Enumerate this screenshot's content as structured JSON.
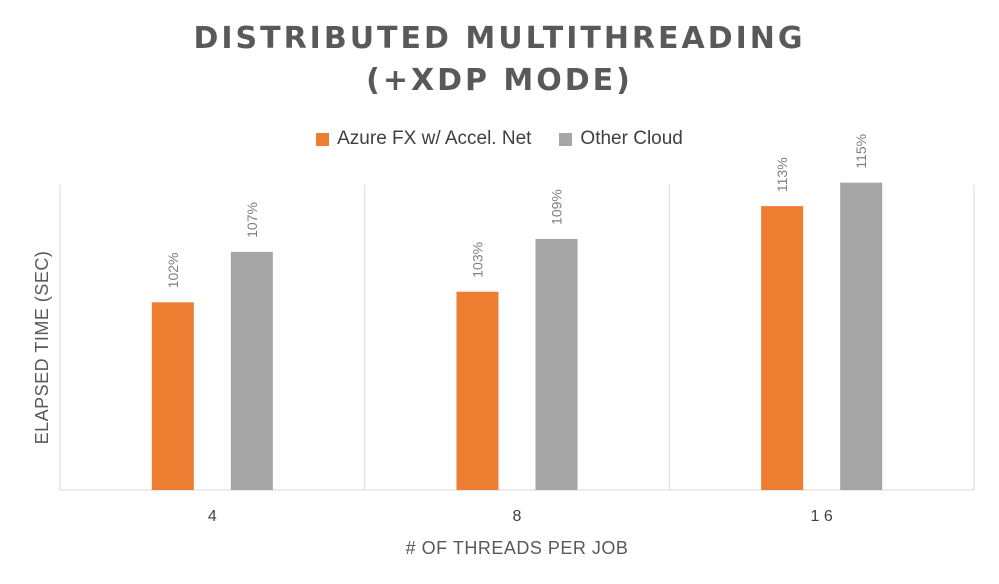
{
  "chart_data": {
    "type": "bar",
    "title_lines": [
      "DISTRIBUTED MULTITHREADING",
      "(+XDP MODE)"
    ],
    "xlabel": "# OF THREADS PER JOB",
    "ylabel": "ELAPSED TIME (SEC)",
    "categories": [
      "4",
      "8",
      "1 6"
    ],
    "ylim": [
      0,
      130
    ],
    "grid": "vertical category separators",
    "legend_position": "top",
    "series": [
      {
        "name": "Azure FX w/ Accel. Net",
        "color": "#ED7D31",
        "values": [
          80,
          84.5,
          121
        ],
        "labels": [
          "102%",
          "103%",
          "113%"
        ]
      },
      {
        "name": "Other Cloud",
        "color": "#A5A5A5",
        "values": [
          101.5,
          107,
          131
        ],
        "labels": [
          "107%",
          "109%",
          "115%"
        ]
      }
    ]
  }
}
